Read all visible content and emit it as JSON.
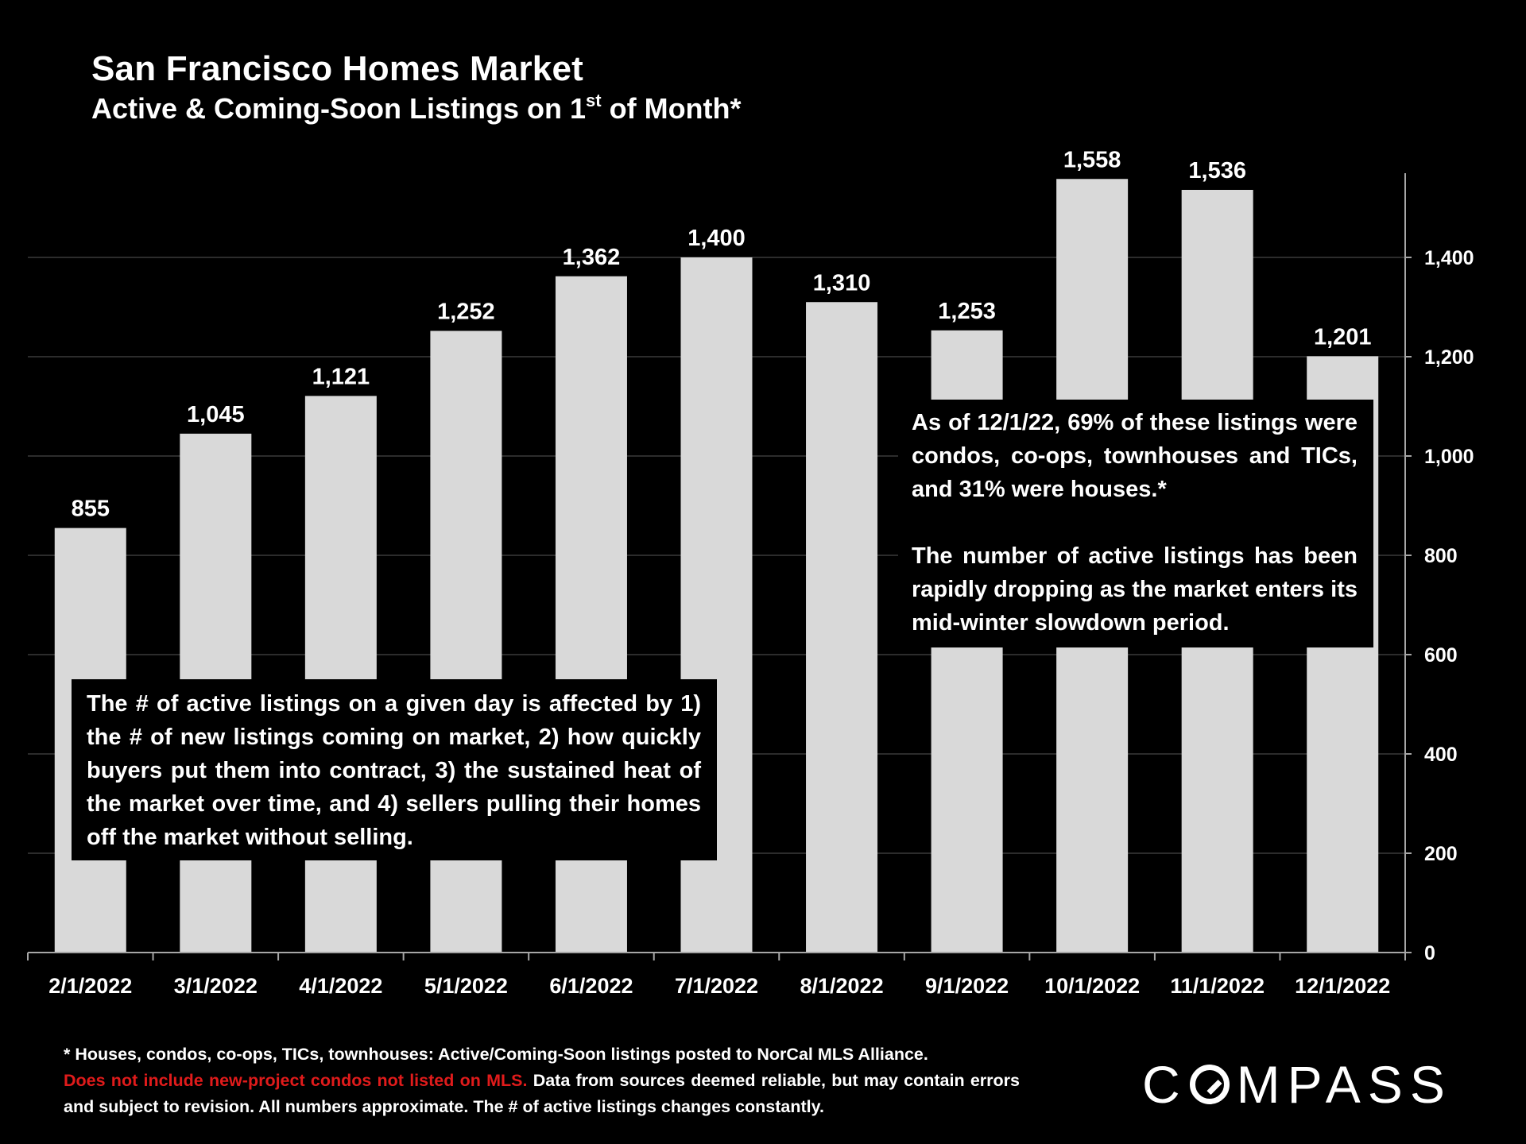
{
  "header": {
    "title": "San Francisco Homes Market",
    "subtitle_main": "Active & Coming-Soon Listings on 1",
    "subtitle_sup": "st",
    "subtitle_end": " of Month*"
  },
  "chart_data": {
    "type": "bar",
    "categories": [
      "2/1/2022",
      "3/1/2022",
      "4/1/2022",
      "5/1/2022",
      "6/1/2022",
      "7/1/2022",
      "8/1/2022",
      "9/1/2022",
      "10/1/2022",
      "11/1/2022",
      "12/1/2022"
    ],
    "values": [
      855,
      1045,
      1121,
      1252,
      1362,
      1400,
      1310,
      1253,
      1558,
      1536,
      1201
    ],
    "value_labels": [
      "855",
      "1,045",
      "1,121",
      "1,252",
      "1,362",
      "1,400",
      "1,310",
      "1,253",
      "1,558",
      "1,536",
      "1,201"
    ],
    "ylim": [
      0,
      1600
    ],
    "yticks": [
      0,
      200,
      400,
      600,
      800,
      1000,
      1200,
      1400
    ],
    "ytick_labels": [
      "0",
      "200",
      "400",
      "600",
      "800",
      "1,000",
      "1,200",
      "1,400"
    ],
    "y_axis_side": "right",
    "grid": true,
    "bar_color": "#d9d9d9",
    "grid_color": "#3a3a3a",
    "axis_color": "#a6a6a6",
    "background_color": "#000000"
  },
  "callouts": {
    "left": "The # of active listings on a given day is affected by 1) the # of new listings coming on market, 2) how quickly buyers put them into contract, 3) the sustained heat of the market over time, and 4) sellers pulling their homes off the market without selling.",
    "right_p1": "As of 12/1/22, 69% of these listings were condos, co-ops, townhouses and TICs, and 31% were houses.*",
    "right_p2": "The number of active listings has been rapidly dropping as the market enters its mid-winter slowdown period."
  },
  "footnote": {
    "line1": "* Houses, condos, co-ops, TICs, townhouses: Active/Coming-Soon listings posted to NorCal MLS Alliance.",
    "warning": "Does not include new-project condos not listed on MLS.",
    "rest": " Data from sources deemed reliable, but may contain errors and subject to revision. All numbers approximate. The # of active listings changes constantly.",
    "warning_color": "#e01b1b"
  },
  "logo": {
    "text_before": "C",
    "text_after": "MPASS"
  }
}
